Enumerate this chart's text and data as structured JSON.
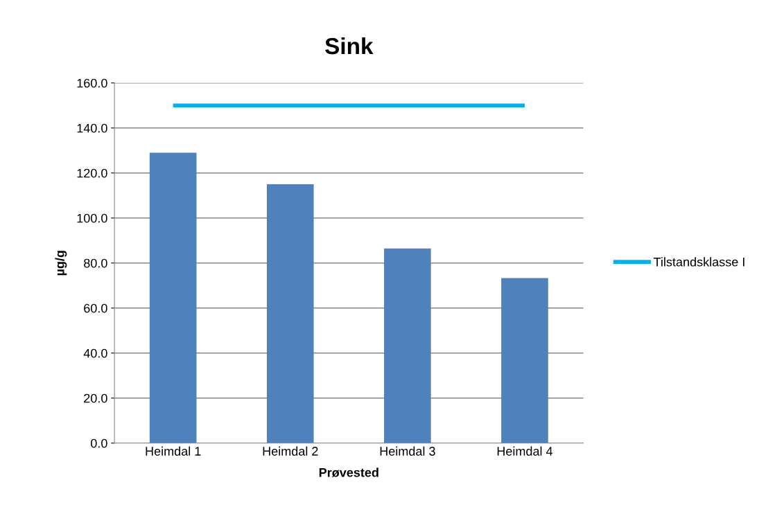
{
  "chart_data": {
    "type": "bar",
    "title": "Sink",
    "xlabel": "Prøvested",
    "ylabel": "µg/g",
    "categories": [
      "Heimdal 1",
      "Heimdal 2",
      "Heimdal 3",
      "Heimdal 4"
    ],
    "series": [
      {
        "color": "#4f81bd",
        "values": [
          129,
          115,
          86.5,
          73.3
        ]
      },
      {
        "type": "line",
        "name": "Tilstandsklasse I",
        "color": "#00b0f0",
        "values": [
          150,
          150,
          150,
          150
        ]
      }
    ],
    "ylim": [
      0,
      160
    ],
    "yticks": [
      {
        "value": 0,
        "label": "0.0"
      },
      {
        "value": 20,
        "label": "20.0"
      },
      {
        "value": 40,
        "label": "40.0"
      },
      {
        "value": 60,
        "label": "60.0"
      },
      {
        "value": 80,
        "label": "80.0"
      },
      {
        "value": 100,
        "label": "100.0"
      },
      {
        "value": 120,
        "label": "120.0"
      },
      {
        "value": 140,
        "label": "140.0"
      },
      {
        "value": 160,
        "label": "160.0"
      }
    ],
    "grid": "y",
    "legend": "right",
    "marker": "none"
  }
}
